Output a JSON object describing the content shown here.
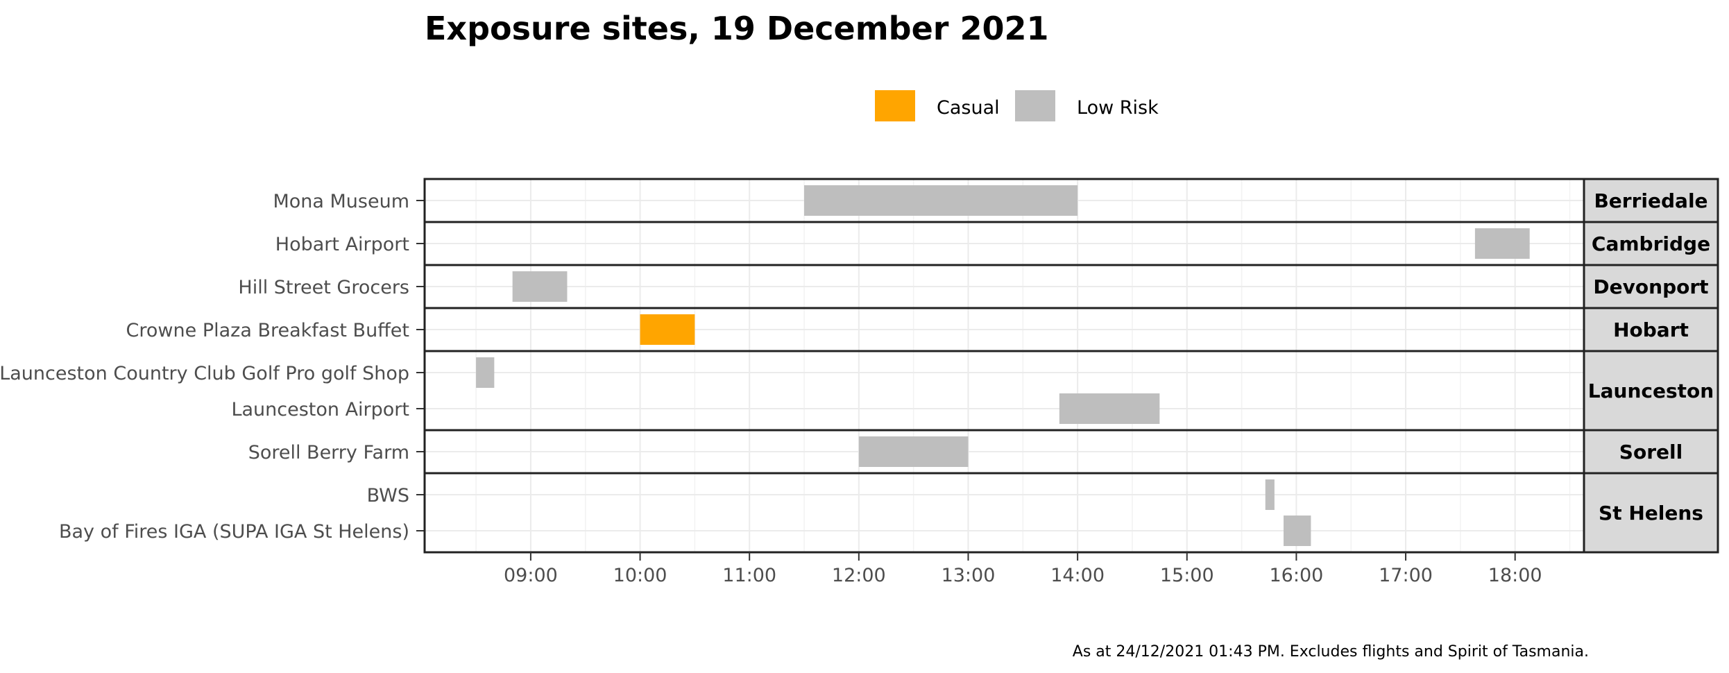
{
  "chart_data": {
    "type": "bar",
    "title": "Exposure sites, 19 December 2021",
    "caption": "As at 24/12/2021 01:43 PM. Excludes flights and Spirit of Tasmania.",
    "legend": {
      "placement": "top",
      "entries": [
        {
          "label": "Casual",
          "color": "#FFA500"
        },
        {
          "label": "Low Risk",
          "color": "#BEBEBE"
        }
      ]
    },
    "x_axis": {
      "range_hours": [
        8.03,
        18.63
      ],
      "ticks": [
        "09:00",
        "10:00",
        "11:00",
        "12:00",
        "13:00",
        "14:00",
        "15:00",
        "16:00",
        "17:00",
        "18:00"
      ]
    },
    "grid": true,
    "facets": [
      {
        "name": "Berriedale",
        "rows": [
          {
            "label": "Mona Museum",
            "intervals": [
              {
                "start": "11:30",
                "end": "14:00",
                "risk": "Low Risk"
              }
            ]
          }
        ]
      },
      {
        "name": "Cambridge",
        "rows": [
          {
            "label": "Hobart Airport",
            "intervals": [
              {
                "start": "17:38",
                "end": "18:08",
                "risk": "Low Risk"
              }
            ]
          }
        ]
      },
      {
        "name": "Devonport",
        "rows": [
          {
            "label": "Hill Street Grocers",
            "intervals": [
              {
                "start": "08:50",
                "end": "09:20",
                "risk": "Low Risk"
              }
            ]
          }
        ]
      },
      {
        "name": "Hobart",
        "rows": [
          {
            "label": "Crowne Plaza Breakfast Buffet",
            "intervals": [
              {
                "start": "10:00",
                "end": "10:30",
                "risk": "Casual"
              }
            ]
          }
        ]
      },
      {
        "name": "Launceston",
        "rows": [
          {
            "label": "Launceston Country Club Golf Pro golf Shop",
            "intervals": [
              {
                "start": "08:30",
                "end": "08:40",
                "risk": "Low Risk"
              }
            ]
          },
          {
            "label": "Launceston Airport",
            "intervals": [
              {
                "start": "13:50",
                "end": "14:45",
                "risk": "Low Risk"
              }
            ]
          }
        ]
      },
      {
        "name": "Sorell",
        "rows": [
          {
            "label": "Sorell Berry Farm",
            "intervals": [
              {
                "start": "12:00",
                "end": "13:00",
                "risk": "Low Risk"
              }
            ]
          }
        ]
      },
      {
        "name": "St Helens",
        "rows": [
          {
            "label": "BWS",
            "intervals": [
              {
                "start": "15:43",
                "end": "15:48",
                "risk": "Low Risk"
              }
            ]
          },
          {
            "label": "Bay of Fires IGA (SUPA IGA St Helens)",
            "intervals": [
              {
                "start": "15:53",
                "end": "16:08",
                "risk": "Low Risk"
              }
            ]
          }
        ]
      }
    ]
  }
}
